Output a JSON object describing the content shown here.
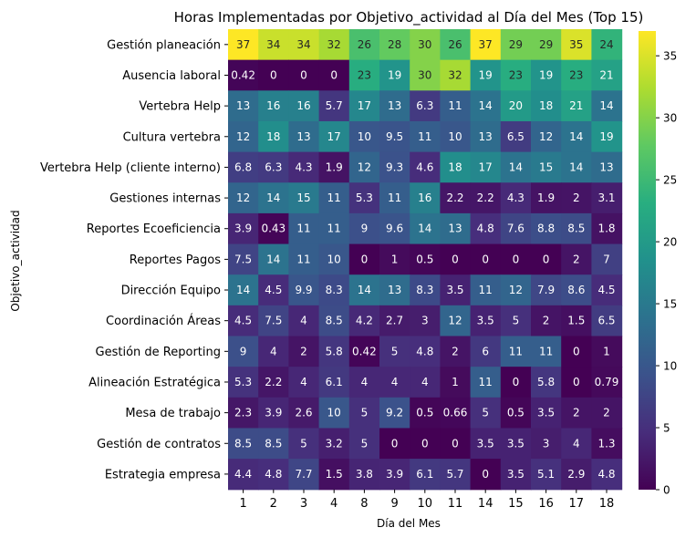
{
  "chart_data": {
    "type": "heatmap",
    "title": "Horas Implementadas por Objetivo_actividad al Día del Mes (Top 15)",
    "xlabel": "Día del Mes",
    "ylabel": "Objetivo_actividad",
    "x": [
      "1",
      "2",
      "3",
      "4",
      "8",
      "9",
      "10",
      "11",
      "14",
      "15",
      "16",
      "17",
      "18"
    ],
    "y": [
      "Gestión planeación",
      "Ausencia laboral",
      "Vertebra Help",
      "Cultura vertebra",
      "Vertebra Help (cliente interno)",
      "Gestiones internas",
      "Reportes Ecoeficiencia",
      "Reportes Pagos",
      "Dirección Equipo",
      "Coordinación Áreas",
      "Gestión de Reporting",
      "Alineación Estratégica",
      "Mesa de trabajo",
      "Gestión de contratos",
      "Estrategia empresa"
    ],
    "values": [
      [
        37,
        34,
        34,
        32,
        26,
        28,
        30,
        26,
        37,
        29,
        29,
        35,
        24
      ],
      [
        0.42,
        0,
        0,
        0,
        23,
        19,
        30,
        32,
        19,
        23,
        19,
        23,
        21
      ],
      [
        13,
        16,
        16,
        5.7,
        17,
        13,
        6.3,
        11,
        14,
        20,
        18,
        21,
        14
      ],
      [
        12,
        18,
        13,
        17,
        10,
        9.5,
        11,
        10,
        13,
        6.5,
        12,
        14,
        19
      ],
      [
        6.8,
        6.3,
        4.3,
        1.9,
        12,
        9.3,
        4.6,
        18,
        17,
        14,
        15,
        14,
        13
      ],
      [
        12,
        14,
        15,
        11,
        5.3,
        11,
        16,
        2.2,
        2.2,
        4.3,
        1.9,
        2,
        3.1
      ],
      [
        3.9,
        0.43,
        11,
        11,
        9,
        9.6,
        14,
        13,
        4.8,
        7.6,
        8.8,
        8.5,
        1.8
      ],
      [
        7.5,
        14,
        11,
        10,
        0,
        1,
        0.5,
        0,
        0,
        0,
        0,
        2,
        7
      ],
      [
        14,
        4.5,
        9.9,
        8.3,
        14,
        13,
        8.3,
        3.5,
        11,
        12,
        7.9,
        8.6,
        4.5
      ],
      [
        4.5,
        7.5,
        4,
        8.5,
        4.2,
        2.7,
        3,
        12,
        3.5,
        5,
        2,
        1.5,
        6.5
      ],
      [
        9,
        4,
        2,
        5.8,
        0.42,
        5,
        4.8,
        2,
        6,
        11,
        11,
        0,
        1
      ],
      [
        5.3,
        2.2,
        4,
        6.1,
        4,
        4,
        4,
        1,
        11,
        0,
        5.8,
        0,
        0.79
      ],
      [
        2.3,
        3.9,
        2.6,
        10,
        5,
        9.2,
        0.5,
        0.66,
        5,
        0.5,
        3.5,
        2,
        2
      ],
      [
        8.5,
        8.5,
        5,
        3.2,
        5,
        0,
        0,
        0,
        3.5,
        3.5,
        3,
        4,
        1.3
      ],
      [
        4.4,
        4.8,
        7.7,
        1.5,
        3.8,
        3.9,
        6.1,
        5.7,
        0,
        3.5,
        5.1,
        2.9,
        4.8
      ]
    ],
    "labels": [
      [
        "37",
        "34",
        "34",
        "32",
        "26",
        "28",
        "30",
        "26",
        "37",
        "29",
        "29",
        "35",
        "24"
      ],
      [
        "0.42",
        "0",
        "0",
        "0",
        "23",
        "19",
        "30",
        "32",
        "19",
        "23",
        "19",
        "23",
        "21"
      ],
      [
        "13",
        "16",
        "16",
        "5.7",
        "17",
        "13",
        "6.3",
        "11",
        "14",
        "20",
        "18",
        "21",
        "14"
      ],
      [
        "12",
        "18",
        "13",
        "17",
        "10",
        "9.5",
        "11",
        "10",
        "13",
        "6.5",
        "12",
        "14",
        "19"
      ],
      [
        "6.8",
        "6.3",
        "4.3",
        "1.9",
        "12",
        "9.3",
        "4.6",
        "18",
        "17",
        "14",
        "15",
        "14",
        "13"
      ],
      [
        "12",
        "14",
        "15",
        "11",
        "5.3",
        "11",
        "16",
        "2.2",
        "2.2",
        "4.3",
        "1.9",
        "2",
        "3.1"
      ],
      [
        "3.9",
        "0.43",
        "11",
        "11",
        "9",
        "9.6",
        "14",
        "13",
        "4.8",
        "7.6",
        "8.8",
        "8.5",
        "1.8"
      ],
      [
        "7.5",
        "14",
        "11",
        "10",
        "0",
        "1",
        "0.5",
        "0",
        "0",
        "0",
        "0",
        "2",
        "7"
      ],
      [
        "14",
        "4.5",
        "9.9",
        "8.3",
        "14",
        "13",
        "8.3",
        "3.5",
        "11",
        "12",
        "7.9",
        "8.6",
        "4.5"
      ],
      [
        "4.5",
        "7.5",
        "4",
        "8.5",
        "4.2",
        "2.7",
        "3",
        "12",
        "3.5",
        "5",
        "2",
        "1.5",
        "6.5"
      ],
      [
        "9",
        "4",
        "2",
        "5.8",
        "0.42",
        "5",
        "4.8",
        "2",
        "6",
        "11",
        "11",
        "0",
        "1"
      ],
      [
        "5.3",
        "2.2",
        "4",
        "6.1",
        "4",
        "4",
        "4",
        "1",
        "11",
        "0",
        "5.8",
        "0",
        "0.79"
      ],
      [
        "2.3",
        "3.9",
        "2.6",
        "10",
        "5",
        "9.2",
        "0.5",
        "0.66",
        "5",
        "0.5",
        "3.5",
        "2",
        "2"
      ],
      [
        "8.5",
        "8.5",
        "5",
        "3.2",
        "5",
        "0",
        "0",
        "0",
        "3.5",
        "3.5",
        "3",
        "4",
        "1.3"
      ],
      [
        "4.4",
        "4.8",
        "7.7",
        "1.5",
        "3.8",
        "3.9",
        "6.1",
        "5.7",
        "0",
        "3.5",
        "5.1",
        "2.9",
        "4.8"
      ]
    ],
    "colormap": "viridis",
    "vmin": 0,
    "vmax": 37,
    "colorbar_ticks": [
      0,
      5,
      10,
      15,
      20,
      25,
      30,
      35
    ],
    "colorbar_tick_labels": [
      "0",
      "5",
      "10",
      "15",
      "20",
      "25",
      "30",
      "35"
    ]
  }
}
